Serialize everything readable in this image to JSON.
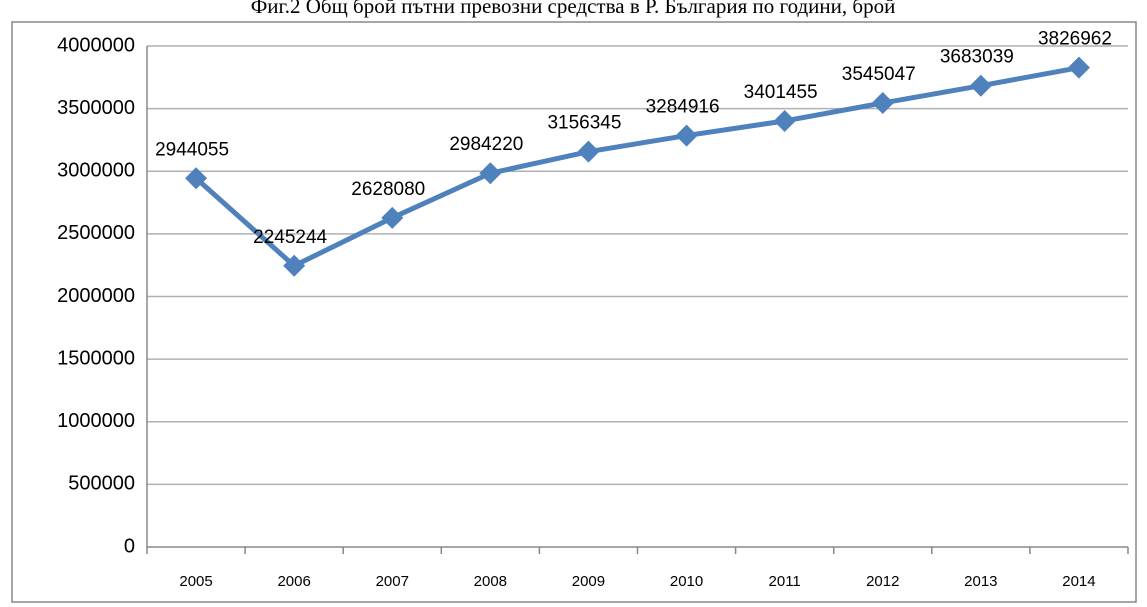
{
  "chart_data": {
    "type": "line",
    "title": "Фиг.2 Общ брой пътни превозни средства в Р. България по години, брой",
    "categories": [
      "2005",
      "2006",
      "2007",
      "2008",
      "2009",
      "2010",
      "2011",
      "2012",
      "2013",
      "2014"
    ],
    "values": [
      2944055,
      2245244,
      2628080,
      2984220,
      3156345,
      3284916,
      3401455,
      3545047,
      3683039,
      3826962
    ],
    "color": "#4f81bd",
    "ylim": [
      0,
      4000000
    ],
    "yticks": [
      0,
      500000,
      1000000,
      1500000,
      2000000,
      2500000,
      3000000,
      3500000,
      4000000
    ],
    "grid": true
  }
}
